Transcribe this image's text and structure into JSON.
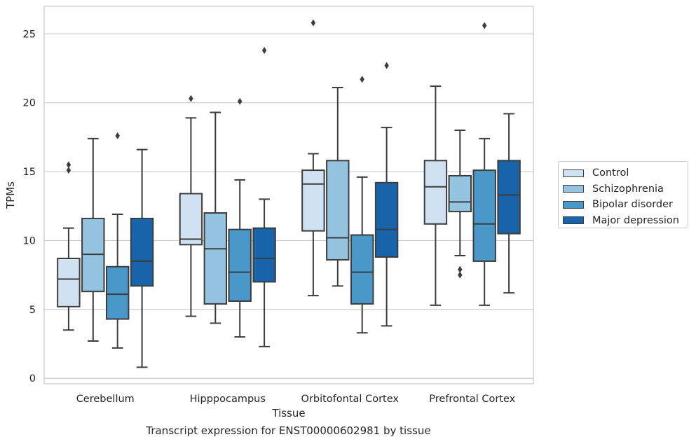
{
  "chart_data": {
    "type": "box",
    "caption": "Transcript expression for ENST00000602981 by tissue",
    "xlabel": "Tissue",
    "ylabel": "TPMs",
    "ylim": [
      -0.4,
      27
    ],
    "yticks": [
      0,
      5,
      10,
      15,
      20,
      25
    ],
    "grid": "horizontal",
    "legend_position": "outside-right",
    "categories": [
      "Cerebellum",
      "Hipppocampus",
      "Orbitofontal Cortex",
      "Prefrontal Cortex"
    ],
    "series": [
      {
        "name": "Control",
        "color": "#d0e1f2",
        "boxes": [
          {
            "whisker_low": 3.5,
            "q1": 5.2,
            "median": 7.2,
            "q3": 8.7,
            "whisker_high": 10.9,
            "outliers": [
              15.1,
              15.5
            ]
          },
          {
            "whisker_low": 4.5,
            "q1": 9.7,
            "median": 10.1,
            "q3": 13.4,
            "whisker_high": 18.9,
            "outliers": [
              20.3
            ]
          },
          {
            "whisker_low": 6.0,
            "q1": 10.7,
            "median": 14.1,
            "q3": 15.1,
            "whisker_high": 16.3,
            "outliers": [
              25.8
            ]
          },
          {
            "whisker_low": 5.3,
            "q1": 11.2,
            "median": 13.9,
            "q3": 15.8,
            "whisker_high": 21.2,
            "outliers": []
          }
        ]
      },
      {
        "name": "Schizophrenia",
        "color": "#94c4df",
        "boxes": [
          {
            "whisker_low": 2.7,
            "q1": 6.3,
            "median": 9.0,
            "q3": 11.6,
            "whisker_high": 17.4,
            "outliers": []
          },
          {
            "whisker_low": 4.0,
            "q1": 5.4,
            "median": 9.4,
            "q3": 12.0,
            "whisker_high": 19.3,
            "outliers": []
          },
          {
            "whisker_low": 6.7,
            "q1": 8.6,
            "median": 10.2,
            "q3": 15.8,
            "whisker_high": 21.1,
            "outliers": []
          },
          {
            "whisker_low": 8.9,
            "q1": 12.1,
            "median": 12.8,
            "q3": 14.7,
            "whisker_high": 18.0,
            "outliers": [
              7.5,
              7.9
            ]
          }
        ]
      },
      {
        "name": "Bipolar disorder",
        "color": "#4a98c9",
        "boxes": [
          {
            "whisker_low": 2.2,
            "q1": 4.3,
            "median": 6.1,
            "q3": 8.1,
            "whisker_high": 11.9,
            "outliers": [
              17.6
            ]
          },
          {
            "whisker_low": 3.0,
            "q1": 5.6,
            "median": 7.7,
            "q3": 10.8,
            "whisker_high": 14.4,
            "outliers": [
              20.1
            ]
          },
          {
            "whisker_low": 3.3,
            "q1": 5.4,
            "median": 7.7,
            "q3": 10.4,
            "whisker_high": 14.6,
            "outliers": [
              21.7
            ]
          },
          {
            "whisker_low": 5.3,
            "q1": 8.5,
            "median": 11.2,
            "q3": 15.1,
            "whisker_high": 17.4,
            "outliers": [
              25.6
            ]
          }
        ]
      },
      {
        "name": "Major depression",
        "color": "#1764ab",
        "boxes": [
          {
            "whisker_low": 0.8,
            "q1": 6.7,
            "median": 8.5,
            "q3": 11.6,
            "whisker_high": 16.6,
            "outliers": []
          },
          {
            "whisker_low": 2.3,
            "q1": 7.0,
            "median": 8.7,
            "q3": 10.9,
            "whisker_high": 13.0,
            "outliers": [
              23.8
            ]
          },
          {
            "whisker_low": 3.8,
            "q1": 8.8,
            "median": 10.8,
            "q3": 14.2,
            "whisker_high": 18.2,
            "outliers": [
              22.7
            ]
          },
          {
            "whisker_low": 6.2,
            "q1": 10.5,
            "median": 13.3,
            "q3": 15.8,
            "whisker_high": 19.2,
            "outliers": []
          }
        ]
      }
    ]
  }
}
